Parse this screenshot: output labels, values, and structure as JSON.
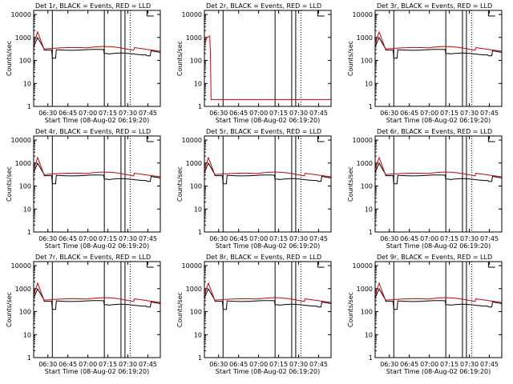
{
  "figure": {
    "xlabel": "Start Time (08-Aug-02 06:19:20)",
    "ylabel": "Counts/sec"
  },
  "chart_data": [
    {
      "type": "line",
      "title": "Det 1r, BLACK = Events, RED = LLD",
      "series": [
        {
          "name": "Events",
          "color": "#000000"
        },
        {
          "name": "LLD",
          "color": "#cc0000"
        }
      ],
      "x_ticks": [
        "06:30",
        "06:45",
        "07:00",
        "07:15",
        "07:30",
        "07:45"
      ],
      "y_ticks": [
        "1",
        "10",
        "100",
        "1000",
        "10000"
      ],
      "yscale": "log",
      "ylim": [
        1,
        15000
      ]
    },
    {
      "type": "line",
      "title": "Det 2r, BLACK = Events, RED = LLD",
      "series": [
        {
          "name": "Events",
          "color": "#000000"
        },
        {
          "name": "LLD",
          "color": "#cc0000"
        }
      ],
      "x_ticks": [
        "06:30",
        "06:45",
        "07:00",
        "07:15",
        "07:30",
        "07:45"
      ],
      "y_ticks": [
        "1",
        "10",
        "100",
        "1000",
        "10000"
      ],
      "yscale": "log",
      "ylim": [
        1,
        15000
      ]
    },
    {
      "type": "line",
      "title": "Det 3r, BLACK = Events, RED = LLD",
      "series": [
        {
          "name": "Events",
          "color": "#000000"
        },
        {
          "name": "LLD",
          "color": "#cc0000"
        }
      ],
      "x_ticks": [
        "06:30",
        "06:45",
        "07:00",
        "07:15",
        "07:30",
        "07:45"
      ],
      "y_ticks": [
        "1",
        "10",
        "100",
        "1000",
        "10000"
      ],
      "yscale": "log",
      "ylim": [
        1,
        15000
      ]
    },
    {
      "type": "line",
      "title": "Det 4r, BLACK = Events, RED = LLD",
      "series": [
        {
          "name": "Events",
          "color": "#000000"
        },
        {
          "name": "LLD",
          "color": "#cc0000"
        }
      ],
      "x_ticks": [
        "06:30",
        "06:45",
        "07:00",
        "07:15",
        "07:30",
        "07:45"
      ],
      "y_ticks": [
        "1",
        "10",
        "100",
        "1000",
        "10000"
      ],
      "yscale": "log",
      "ylim": [
        1,
        15000
      ]
    },
    {
      "type": "line",
      "title": "Det 5r, BLACK = Events, RED = LLD",
      "series": [
        {
          "name": "Events",
          "color": "#000000"
        },
        {
          "name": "LLD",
          "color": "#cc0000"
        }
      ],
      "x_ticks": [
        "06:30",
        "06:45",
        "07:00",
        "07:15",
        "07:30",
        "07:45"
      ],
      "y_ticks": [
        "1",
        "10",
        "100",
        "1000",
        "10000"
      ],
      "yscale": "log",
      "ylim": [
        1,
        15000
      ]
    },
    {
      "type": "line",
      "title": "Det 6r, BLACK = Events, RED = LLD",
      "series": [
        {
          "name": "Events",
          "color": "#000000"
        },
        {
          "name": "LLD",
          "color": "#cc0000"
        }
      ],
      "x_ticks": [
        "06:30",
        "06:45",
        "07:00",
        "07:15",
        "07:30",
        "07:45"
      ],
      "y_ticks": [
        "1",
        "10",
        "100",
        "1000",
        "10000"
      ],
      "yscale": "log",
      "ylim": [
        1,
        15000
      ]
    },
    {
      "type": "line",
      "title": "Det 7r, BLACK = Events, RED = LLD",
      "series": [
        {
          "name": "Events",
          "color": "#000000"
        },
        {
          "name": "LLD",
          "color": "#cc0000"
        }
      ],
      "x_ticks": [
        "06:30",
        "06:45",
        "07:00",
        "07:15",
        "07:30",
        "07:45"
      ],
      "y_ticks": [
        "1",
        "10",
        "100",
        "1000",
        "10000"
      ],
      "yscale": "log",
      "ylim": [
        1,
        15000
      ]
    },
    {
      "type": "line",
      "title": "Det 8r, BLACK = Events, RED = LLD",
      "series": [
        {
          "name": "Events",
          "color": "#000000"
        },
        {
          "name": "LLD",
          "color": "#cc0000"
        }
      ],
      "x_ticks": [
        "06:30",
        "06:45",
        "07:00",
        "07:15",
        "07:30",
        "07:45"
      ],
      "y_ticks": [
        "1",
        "10",
        "100",
        "1000",
        "10000"
      ],
      "yscale": "log",
      "ylim": [
        1,
        15000
      ]
    },
    {
      "type": "line",
      "title": "Det 9r, BLACK = Events, RED = LLD",
      "series": [
        {
          "name": "Events",
          "color": "#000000"
        },
        {
          "name": "LLD",
          "color": "#cc0000"
        }
      ],
      "x_ticks": [
        "06:30",
        "06:45",
        "07:00",
        "07:15",
        "07:30",
        "07:45"
      ],
      "y_ticks": [
        "1",
        "10",
        "100",
        "1000",
        "10000"
      ],
      "yscale": "log",
      "ylim": [
        1,
        15000
      ]
    }
  ]
}
